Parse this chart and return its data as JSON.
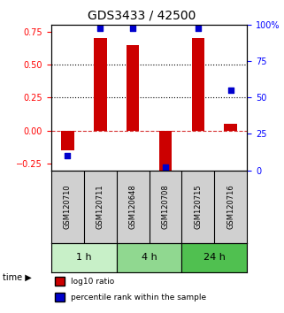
{
  "title": "GDS3433 / 42500",
  "samples": [
    "GSM120710",
    "GSM120711",
    "GSM120648",
    "GSM120708",
    "GSM120715",
    "GSM120716"
  ],
  "log10_ratio": [
    -0.15,
    0.7,
    0.65,
    -0.3,
    0.7,
    0.05
  ],
  "percentile_rank": [
    10,
    98,
    98,
    2,
    98,
    55
  ],
  "time_groups": [
    {
      "label": "1 h",
      "cols": [
        0,
        1
      ],
      "color": "#c8f0c8"
    },
    {
      "label": "4 h",
      "cols": [
        2,
        3
      ],
      "color": "#90d890"
    },
    {
      "label": "24 h",
      "cols": [
        4,
        5
      ],
      "color": "#50c050"
    }
  ],
  "bar_color": "#cc0000",
  "dot_color": "#0000cc",
  "left_ylim": [
    -0.3,
    0.8
  ],
  "right_ylim": [
    0,
    100
  ],
  "left_yticks": [
    -0.25,
    0,
    0.25,
    0.5,
    0.75
  ],
  "right_yticks": [
    0,
    25,
    50,
    75,
    100
  ],
  "hline_dotted": [
    0.25,
    0.5
  ],
  "hline_dashed": 0,
  "bar_width": 0.4,
  "dot_size": 25
}
